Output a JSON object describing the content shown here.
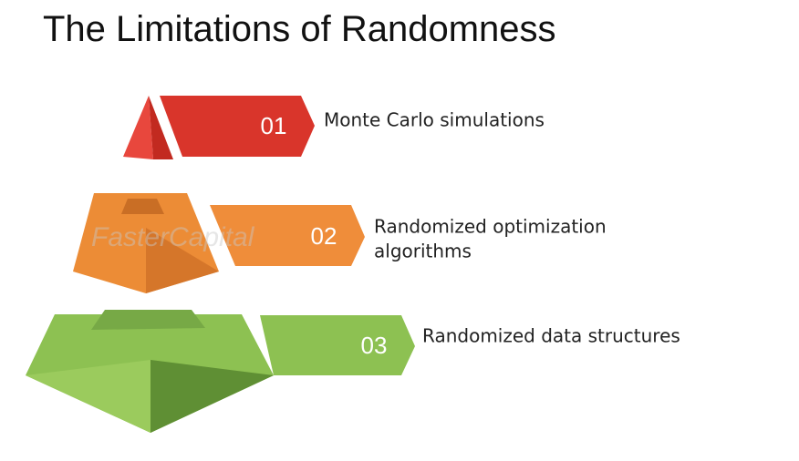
{
  "header": {
    "title": "The Limitations of Randomness"
  },
  "watermark": "FasterCapital",
  "items": [
    {
      "number": "01",
      "label_lines": [
        "Monte Carlo simulations"
      ]
    },
    {
      "number": "02",
      "label_lines": [
        "Randomized optimization",
        "algorithms"
      ]
    },
    {
      "number": "03",
      "label_lines": [
        "Randomized data structures"
      ]
    }
  ]
}
